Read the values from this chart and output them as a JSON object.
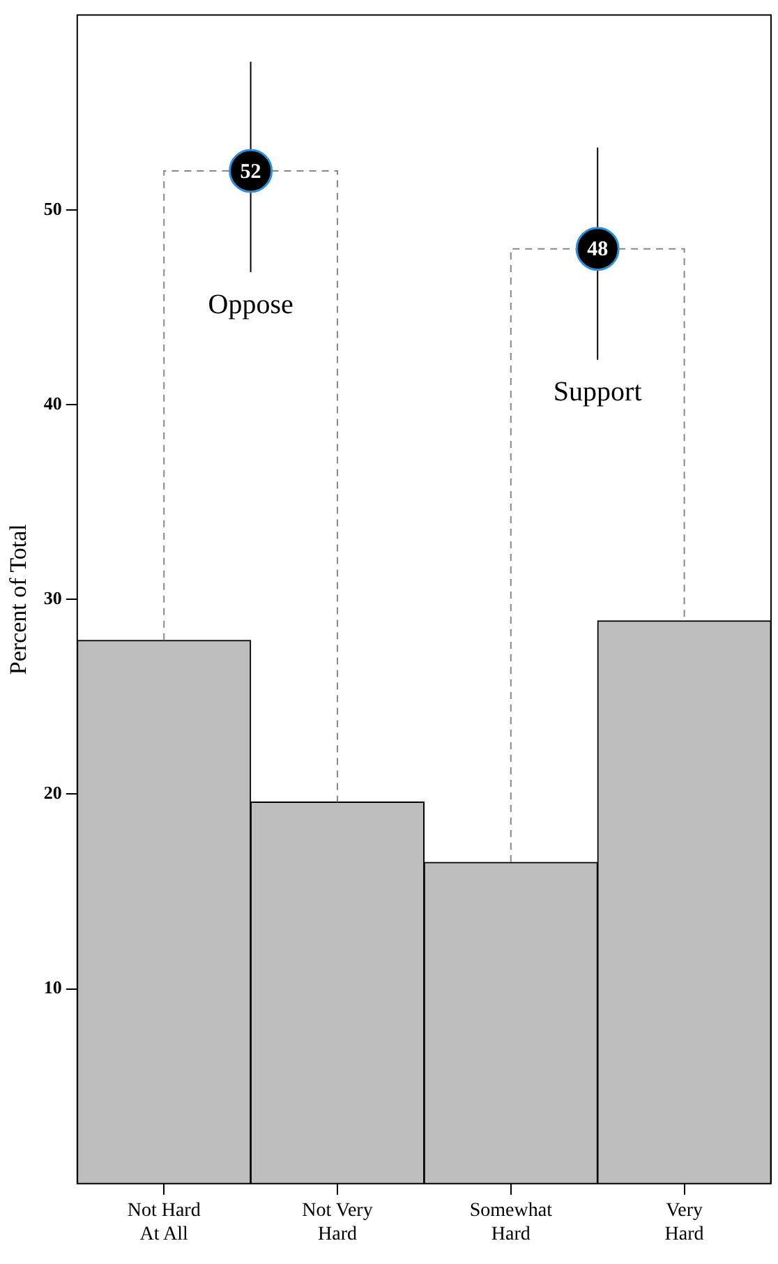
{
  "chart_data": {
    "type": "bar",
    "ylabel": "Percent of Total",
    "categories": [
      "Not Hard\nAt All",
      null,
      "Not Very\nHard",
      null,
      "Somewhat\nHard",
      null,
      "Very\nHard"
    ],
    "values": [
      27.9,
      null,
      19.6,
      null,
      16.5,
      null,
      28.9
    ],
    "color": "#bebebe",
    "annotations": [
      "Oppose",
      "Support"
    ],
    "ylim": [
      0,
      60
    ],
    "yticks": [
      10,
      20,
      30,
      40,
      50
    ],
    "grid": false,
    "legend": false,
    "series": [
      {
        "type": "scatter",
        "values": [
          null,
          52,
          null,
          null,
          null,
          null,
          null
        ],
        "errors": [
          null,
          [
            46.8,
            57.6
          ],
          null,
          null,
          null,
          null,
          null
        ],
        "value_labels": [
          null,
          "52",
          null,
          null,
          null,
          null,
          null
        ],
        "color": "#000000"
      },
      {
        "type": "scatter",
        "values": [
          null,
          null,
          null,
          null,
          null,
          48,
          null
        ],
        "errors": [
          null,
          null,
          null,
          null,
          null,
          [
            42.3,
            53.2
          ],
          null
        ],
        "value_labels": [
          null,
          null,
          null,
          null,
          null,
          "48",
          null
        ],
        "color": "#000000"
      }
    ]
  }
}
